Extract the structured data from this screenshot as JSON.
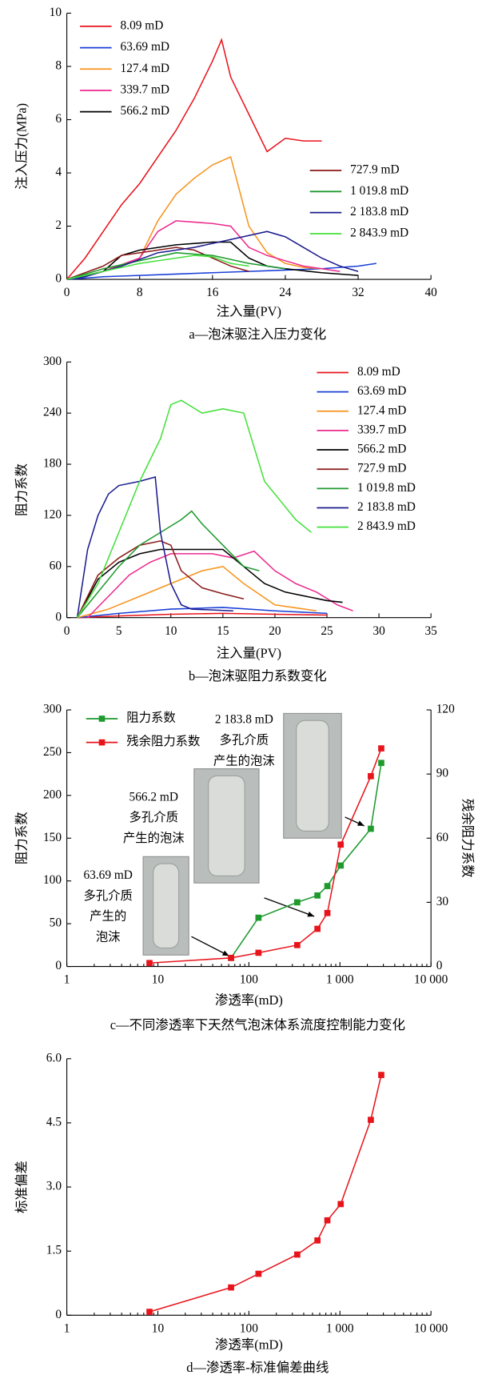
{
  "chart_data": [
    {
      "type": "line",
      "caption": "a—泡沫驱注入压力变化",
      "x_label": "注入量(PV)",
      "y_label": "注入压力(MPa)",
      "xlim": [
        0,
        40
      ],
      "xticks": [
        0,
        8,
        16,
        24,
        32,
        40
      ],
      "ylim": [
        0,
        10
      ],
      "yticks": [
        0,
        2,
        4,
        6,
        8,
        10
      ],
      "series": [
        {
          "name": "8.09 mD",
          "color": "#e8141b",
          "x": [
            0,
            2,
            4,
            6,
            8,
            10,
            12,
            14,
            16,
            17,
            18,
            20,
            22,
            24,
            26,
            28
          ],
          "values": [
            0,
            0.8,
            1.8,
            2.8,
            3.6,
            4.6,
            5.6,
            6.8,
            8.2,
            9.0,
            7.6,
            6.2,
            4.8,
            5.3,
            5.2,
            5.2
          ]
        },
        {
          "name": "63.69 mD",
          "color": "#1a3fd6",
          "x": [
            0,
            4,
            8,
            12,
            16,
            20,
            24,
            28,
            32,
            34
          ],
          "values": [
            0,
            0.1,
            0.15,
            0.2,
            0.25,
            0.3,
            0.35,
            0.4,
            0.5,
            0.6
          ]
        },
        {
          "name": "127.4 mD",
          "color": "#f7941d",
          "x": [
            0,
            4,
            8,
            10,
            12,
            14,
            16,
            18,
            20,
            22,
            24,
            26,
            28
          ],
          "values": [
            0,
            0.3,
            0.8,
            2.2,
            3.2,
            3.8,
            4.3,
            4.6,
            2.0,
            1.0,
            0.6,
            0.45,
            0.4
          ]
        },
        {
          "name": "339.7 mD",
          "color": "#ec2a8e",
          "x": [
            0,
            4,
            8,
            10,
            12,
            16,
            18,
            20,
            22,
            24,
            26,
            28,
            30
          ],
          "values": [
            0,
            0.3,
            0.8,
            1.8,
            2.2,
            2.1,
            2.0,
            1.2,
            0.9,
            0.7,
            0.5,
            0.4,
            0.3
          ]
        },
        {
          "name": "566.2 mD",
          "color": "#000000",
          "x": [
            0,
            4,
            6,
            8,
            12,
            16,
            18,
            20,
            22,
            24,
            28,
            32
          ],
          "values": [
            0,
            0.3,
            0.9,
            1.1,
            1.3,
            1.4,
            1.4,
            0.8,
            0.5,
            0.4,
            0.25,
            0.15
          ]
        },
        {
          "name": "727.9 mD",
          "color": "#8b1a1a",
          "x": [
            0,
            4,
            6,
            8,
            10,
            12,
            14,
            16,
            18,
            20
          ],
          "values": [
            0,
            0.5,
            0.9,
            1.0,
            1.1,
            1.2,
            1.1,
            0.8,
            0.5,
            0.3
          ]
        },
        {
          "name": "1 019.8 mD",
          "color": "#1e9a2e",
          "x": [
            0,
            4,
            8,
            12,
            16,
            20,
            24
          ],
          "values": [
            0,
            0.4,
            0.7,
            1.0,
            0.9,
            0.6,
            0.4
          ]
        },
        {
          "name": "2 183.8 mD",
          "color": "#1b1b8f",
          "x": [
            0,
            2,
            6,
            10,
            14,
            18,
            22,
            24,
            26,
            28,
            30,
            32
          ],
          "values": [
            0,
            0.1,
            0.5,
            1.0,
            1.2,
            1.5,
            1.8,
            1.6,
            1.2,
            0.8,
            0.5,
            0.3
          ]
        },
        {
          "name": "2 843.9 mD",
          "color": "#45e03c",
          "x": [
            0,
            4,
            8,
            12,
            14,
            16,
            18,
            20
          ],
          "values": [
            0,
            0.3,
            0.6,
            0.8,
            0.9,
            0.85,
            0.6,
            0.5
          ]
        }
      ]
    },
    {
      "type": "line",
      "caption": "b—泡沫驱阻力系数变化",
      "x_label": "注入量(PV)",
      "y_label": "阻力系数",
      "xlim": [
        0,
        35
      ],
      "xticks": [
        0,
        5,
        10,
        15,
        20,
        25,
        30,
        35
      ],
      "ylim": [
        0,
        300
      ],
      "yticks": [
        0,
        60,
        120,
        180,
        240,
        300
      ],
      "series": [
        {
          "name": "8.09 mD",
          "color": "#e8141b",
          "x": [
            1,
            5,
            10,
            15,
            20,
            25
          ],
          "values": [
            0,
            2,
            4,
            5,
            4,
            3
          ]
        },
        {
          "name": "63.69 mD",
          "color": "#1a3fd6",
          "x": [
            1,
            5,
            10,
            15,
            20,
            25
          ],
          "values": [
            0,
            5,
            10,
            12,
            8,
            5
          ]
        },
        {
          "name": "127.4 mD",
          "color": "#f7941d",
          "x": [
            1,
            4,
            7,
            10,
            13,
            15,
            17,
            20,
            24
          ],
          "values": [
            0,
            10,
            25,
            40,
            55,
            60,
            40,
            15,
            8
          ]
        },
        {
          "name": "339.7 mD",
          "color": "#ec2a8e",
          "x": [
            2,
            4,
            6,
            8,
            10,
            12,
            14,
            16,
            18,
            20,
            22,
            24,
            26,
            27.5
          ],
          "values": [
            0,
            25,
            50,
            65,
            75,
            75,
            75,
            70,
            78,
            55,
            40,
            30,
            15,
            8
          ]
        },
        {
          "name": "566.2 mD",
          "color": "#000000",
          "x": [
            1,
            3,
            5,
            7,
            9,
            11,
            13,
            15,
            17,
            19,
            21,
            23,
            25,
            26.5
          ],
          "values": [
            0,
            45,
            65,
            75,
            80,
            80,
            80,
            80,
            60,
            40,
            30,
            25,
            20,
            18
          ]
        },
        {
          "name": "727.9 mD",
          "color": "#8b1a1a",
          "x": [
            1,
            3,
            5,
            7,
            9,
            10,
            11,
            13,
            15,
            17
          ],
          "values": [
            0,
            50,
            70,
            85,
            90,
            85,
            55,
            35,
            28,
            22
          ]
        },
        {
          "name": "1 019.8 mD",
          "color": "#1e9a2e",
          "x": [
            1,
            3,
            5,
            7,
            9,
            11,
            12,
            13,
            15,
            17,
            18.5
          ],
          "values": [
            0,
            30,
            60,
            85,
            100,
            115,
            125,
            110,
            85,
            60,
            55
          ]
        },
        {
          "name": "2 183.8 mD",
          "color": "#1b1b8f",
          "x": [
            1,
            2,
            3,
            4,
            5,
            7,
            8.5,
            9,
            10,
            11,
            12,
            16
          ],
          "values": [
            0,
            80,
            120,
            145,
            155,
            160,
            165,
            100,
            40,
            15,
            10,
            8
          ]
        },
        {
          "name": "2 843.9 mD",
          "color": "#45e03c",
          "x": [
            1,
            3,
            5,
            7,
            9,
            10,
            11,
            13,
            15,
            17,
            19,
            21,
            22,
            23.5
          ],
          "values": [
            0,
            40,
            100,
            160,
            210,
            250,
            255,
            240,
            245,
            240,
            160,
            130,
            115,
            100
          ]
        }
      ]
    },
    {
      "type": "line",
      "caption": "c—不同渗透率下天然气泡沫体系流度控制能力变化",
      "x_label": "渗透率(mD)",
      "y_label": "阻力系数",
      "y2_label": "残余阻力系数",
      "xscale": "log",
      "xlim": [
        1,
        10000
      ],
      "xticks": [
        1,
        10,
        100,
        {
          "value": 1000,
          "label": "1 000"
        },
        {
          "value": 10000,
          "label": "10 000"
        }
      ],
      "ylim": [
        0,
        300
      ],
      "yticks": [
        0,
        50,
        100,
        150,
        200,
        250,
        300
      ],
      "y2lim": [
        0,
        120
      ],
      "y2ticks": [
        0,
        30,
        60,
        90,
        120
      ],
      "markers": true,
      "series": [
        {
          "name": "阻力系数",
          "color": "#1e9a2e",
          "x": [
            63.69,
            127.4,
            339.7,
            566.2,
            727.9,
            1019.8,
            2183.8,
            2843.9
          ],
          "values": [
            10,
            57,
            75,
            83,
            94,
            118,
            161,
            238
          ]
        },
        {
          "name": "残余阻力系数",
          "color": "#e8141b",
          "axis": "y2",
          "x": [
            8.09,
            63.69,
            127.4,
            339.7,
            566.2,
            727.9,
            1019.8,
            2183.8,
            2843.9
          ],
          "values": [
            1.6,
            4,
            6.4,
            10,
            17.6,
            25,
            57,
            89,
            102
          ]
        }
      ],
      "annotations": [
        {
          "lines": [
            "63.69 mD",
            "多孔介质",
            "产生的",
            "泡沫"
          ]
        },
        {
          "lines": [
            "566.2 mD",
            "多孔介质",
            "产生的泡沫"
          ]
        },
        {
          "lines": [
            "2 183.8 mD",
            "多孔介质",
            "产生的泡沫"
          ]
        }
      ]
    },
    {
      "type": "line",
      "caption": "d—渗透率-标准偏差曲线",
      "x_label": "渗透率(mD)",
      "y_label": "标准偏差",
      "xscale": "log",
      "xlim": [
        1,
        10000
      ],
      "xticks": [
        1,
        10,
        100,
        {
          "value": 1000,
          "label": "1 000"
        },
        {
          "value": 10000,
          "label": "10 000"
        }
      ],
      "ylim": [
        0,
        6
      ],
      "yticks": [
        0,
        1.5,
        {
          "value": 3,
          "label": "3.0"
        },
        4.5,
        {
          "value": 6,
          "label": "6.0"
        }
      ],
      "markers": true,
      "series": [
        {
          "color": "#e8141b",
          "x": [
            8.09,
            63.69,
            127.4,
            339.7,
            566.2,
            727.9,
            1019.8,
            2183.8,
            2843.9
          ],
          "values": [
            0.08,
            0.65,
            0.97,
            1.42,
            1.75,
            2.22,
            2.6,
            4.57,
            5.62
          ]
        }
      ]
    }
  ]
}
